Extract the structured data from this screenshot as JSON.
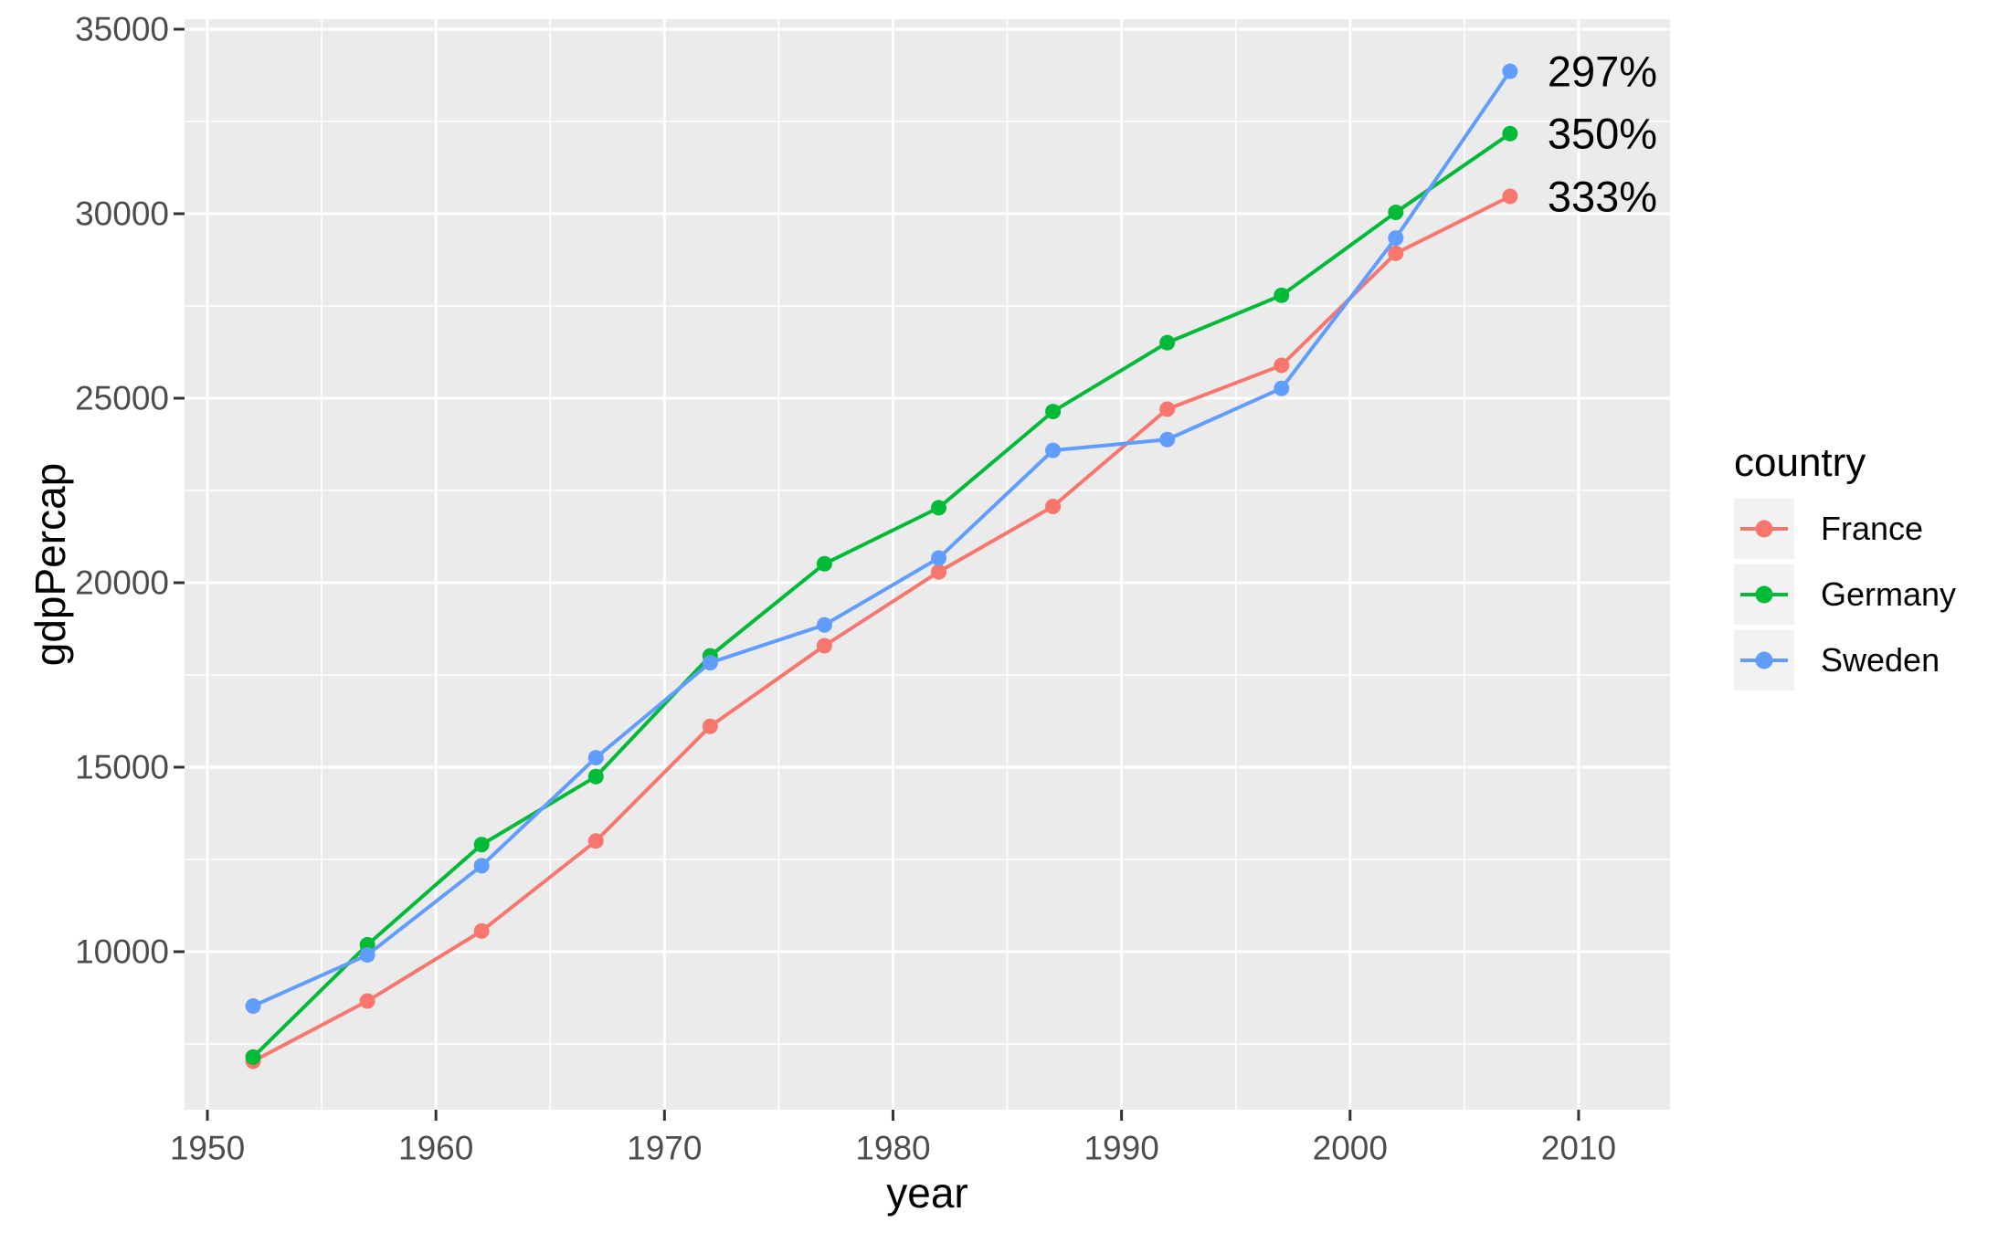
{
  "chart_data": {
    "type": "line",
    "title": "",
    "xlabel": "year",
    "ylabel": "gdpPercap",
    "x": [
      1952,
      1957,
      1962,
      1967,
      1972,
      1977,
      1982,
      1987,
      1992,
      1997,
      2002,
      2007
    ],
    "series": [
      {
        "name": "France",
        "color": "#F8766D",
        "values": [
          7029.8,
          8662.8,
          10560.5,
          13000.0,
          16107.2,
          18292.6,
          20293.9,
          22066.4,
          24703.8,
          25889.8,
          28926.0,
          30470.0
        ]
      },
      {
        "name": "Germany",
        "color": "#00BA38",
        "values": [
          7144.1,
          10187.8,
          12902.5,
          14745.6,
          18016.2,
          20512.9,
          22031.5,
          24639.2,
          26505.3,
          27788.9,
          30035.8,
          32170.4
        ]
      },
      {
        "name": "Sweden",
        "color": "#619CFF",
        "values": [
          8527.8,
          9911.9,
          12329.4,
          15258.3,
          17832.0,
          18855.7,
          20667.4,
          23586.9,
          23880.0,
          25266.6,
          29341.6,
          33859.8
        ]
      }
    ],
    "x_ticks": [
      1950,
      1960,
      1970,
      1980,
      1990,
      2000,
      2010
    ],
    "y_ticks": [
      10000,
      15000,
      20000,
      25000,
      30000,
      35000
    ],
    "x_domain": [
      1949.0,
      2014.0
    ],
    "y_domain": [
      5718,
      35272
    ],
    "grid": true,
    "legend_position": "right",
    "legend_title": "country",
    "annotations": [
      {
        "text": "297%",
        "series": "Sweden",
        "year": 2007,
        "value": 33859.8
      },
      {
        "text": "350%",
        "series": "Germany",
        "year": 2007,
        "value": 32170.4
      },
      {
        "text": "333%",
        "series": "France",
        "year": 2007,
        "value": 30470.0
      }
    ]
  },
  "style_colors": {
    "panel_background": "#EBEBEB",
    "grid_major": "#FFFFFF",
    "grid_minor": "#FFFFFF",
    "tick_mark": "#333333",
    "tick_label": "#4D4D4D",
    "axis_title": "#000000",
    "annotation_text": "#000000",
    "legend_key_background": "#F2F2F2"
  }
}
